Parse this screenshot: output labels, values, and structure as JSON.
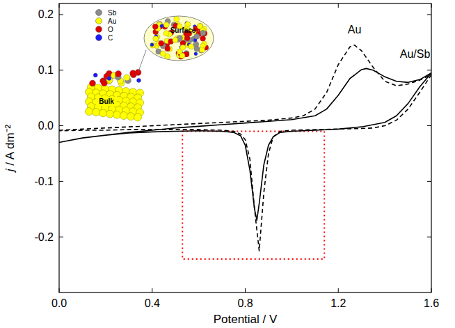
{
  "chart_data": {
    "type": "line",
    "x_label": "Potential / V",
    "y_label": "j / A dm⁻²",
    "xlim": [
      0,
      1.6
    ],
    "ylim": [
      -0.3,
      0.22
    ],
    "xticks": [
      {
        "value": 0,
        "label": "0.0"
      },
      0.4,
      0.8,
      1.2,
      1.6
    ],
    "yticks": [
      -0.2,
      -0.1,
      {
        "value": 0,
        "label": "0.0"
      },
      0.1,
      0.2
    ],
    "grid": false,
    "series": [
      {
        "name": "Au",
        "color": "#000000",
        "line_style": "dashed",
        "x": [
          0,
          0.1,
          0.2,
          0.3,
          0.4,
          0.5,
          0.6,
          0.7,
          0.8,
          0.9,
          1.0,
          1.05,
          1.1,
          1.15,
          1.2,
          1.25,
          1.27,
          1.3,
          1.35,
          1.4,
          1.45,
          1.5,
          1.55,
          1.6,
          1.55,
          1.5,
          1.45,
          1.4,
          1.35,
          1.3,
          1.2,
          1.1,
          1.0,
          0.95,
          0.92,
          0.9,
          0.88,
          0.86,
          0.84,
          0.82,
          0.8,
          0.78,
          0.75,
          0.7,
          0.6,
          0.5,
          0.4,
          0.3,
          0.2,
          0.1,
          0.0
        ],
        "values": [
          -0.008,
          -0.006,
          -0.004,
          -0.002,
          0.0,
          0.002,
          0.004,
          0.006,
          0.008,
          0.01,
          0.014,
          0.018,
          0.03,
          0.06,
          0.11,
          0.142,
          0.145,
          0.135,
          0.105,
          0.08,
          0.072,
          0.075,
          0.082,
          0.092,
          0.06,
          0.03,
          0.01,
          0.0,
          -0.004,
          -0.005,
          -0.006,
          -0.007,
          -0.008,
          -0.01,
          -0.02,
          -0.05,
          -0.12,
          -0.225,
          -0.15,
          -0.06,
          -0.025,
          -0.015,
          -0.01,
          -0.008,
          -0.007,
          -0.007,
          -0.007,
          -0.007,
          -0.008,
          -0.008,
          -0.009
        ]
      },
      {
        "name": "Au/Sb",
        "color": "#000000",
        "line_style": "solid",
        "x": [
          0,
          0.05,
          0.1,
          0.2,
          0.3,
          0.4,
          0.5,
          0.6,
          0.7,
          0.8,
          0.9,
          1.0,
          1.1,
          1.15,
          1.2,
          1.25,
          1.3,
          1.32,
          1.35,
          1.4,
          1.45,
          1.5,
          1.55,
          1.6,
          1.55,
          1.5,
          1.45,
          1.4,
          1.3,
          1.2,
          1.1,
          1.0,
          0.95,
          0.92,
          0.9,
          0.88,
          0.86,
          0.85,
          0.84,
          0.82,
          0.8,
          0.78,
          0.75,
          0.7,
          0.6,
          0.5,
          0.4,
          0.3,
          0.2,
          0.1,
          0.0
        ],
        "values": [
          -0.03,
          -0.026,
          -0.022,
          -0.017,
          -0.012,
          -0.008,
          -0.004,
          -0.001,
          0.002,
          0.005,
          0.008,
          0.011,
          0.018,
          0.03,
          0.055,
          0.085,
          0.101,
          0.103,
          0.1,
          0.088,
          0.08,
          0.078,
          0.083,
          0.095,
          0.07,
          0.04,
          0.018,
          0.006,
          -0.002,
          -0.006,
          -0.008,
          -0.01,
          -0.012,
          -0.02,
          -0.035,
          -0.07,
          -0.14,
          -0.17,
          -0.15,
          -0.08,
          -0.035,
          -0.018,
          -0.012,
          -0.01,
          -0.009,
          -0.01,
          -0.011,
          -0.013,
          -0.017,
          -0.022,
          -0.03
        ]
      }
    ],
    "annotations": [
      {
        "text": "Au",
        "x": 1.27,
        "y": 0.166
      },
      {
        "text": "Au/Sb",
        "x": 1.53,
        "y": 0.122
      }
    ],
    "highlight": {
      "x": [
        0.53,
        1.14
      ],
      "y": [
        -0.24,
        -0.01
      ],
      "color": "#ff0000",
      "line_style": "dotted"
    },
    "inset": {
      "legend": [
        {
          "label": "Sb",
          "color": "#8c8c8c"
        },
        {
          "label": "Au",
          "color": "#ffff00"
        },
        {
          "label": "O",
          "color": "#e00000"
        },
        {
          "label": "C",
          "color": "#1a1aff"
        }
      ],
      "surface_label": "Surface",
      "bulk_label": "Bulk"
    }
  }
}
